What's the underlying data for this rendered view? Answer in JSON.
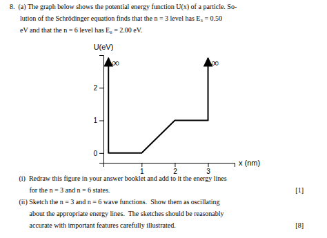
{
  "chart_data": {
    "type": "line",
    "title": [
      "8.  (a) The graph below shows the potential energy function U(x) of a particle. So-",
      "      lution of the Schrödinger equation finds that the n = 3 level has E₃ = 0.50",
      "      eV and that the n = 6 level has E₆ = 2.00 eV."
    ],
    "xlabel": "x (nm)",
    "ylabel": "U(eV)",
    "x": [
      0,
      1,
      2,
      3
    ],
    "values": [
      0,
      0,
      1,
      1
    ],
    "color": "#000000",
    "xlim": [
      -0.15,
      3.8
    ],
    "ylim": [
      -0.3,
      3.0
    ],
    "xticks": [
      1,
      2,
      3
    ],
    "yticks": [
      0,
      1,
      2
    ],
    "wall_labels": [
      "∞",
      "∞"
    ],
    "annotations": [
      [
        "   (i)  Redraw this figure in your answer booklet and add to it the energy lines"
      ],
      [
        "         for the n = 3 and n = 6 states.",
        "[1]"
      ],
      [
        "   (ii) Sketch the n = 3 and n = 6 wave functions.  Show them as oscillating"
      ],
      [
        "         about the appropriate energy lines.  The sketches should be reasonably"
      ],
      [
        "         accurate with important features carefully illustrated.",
        "[8]"
      ]
    ]
  }
}
